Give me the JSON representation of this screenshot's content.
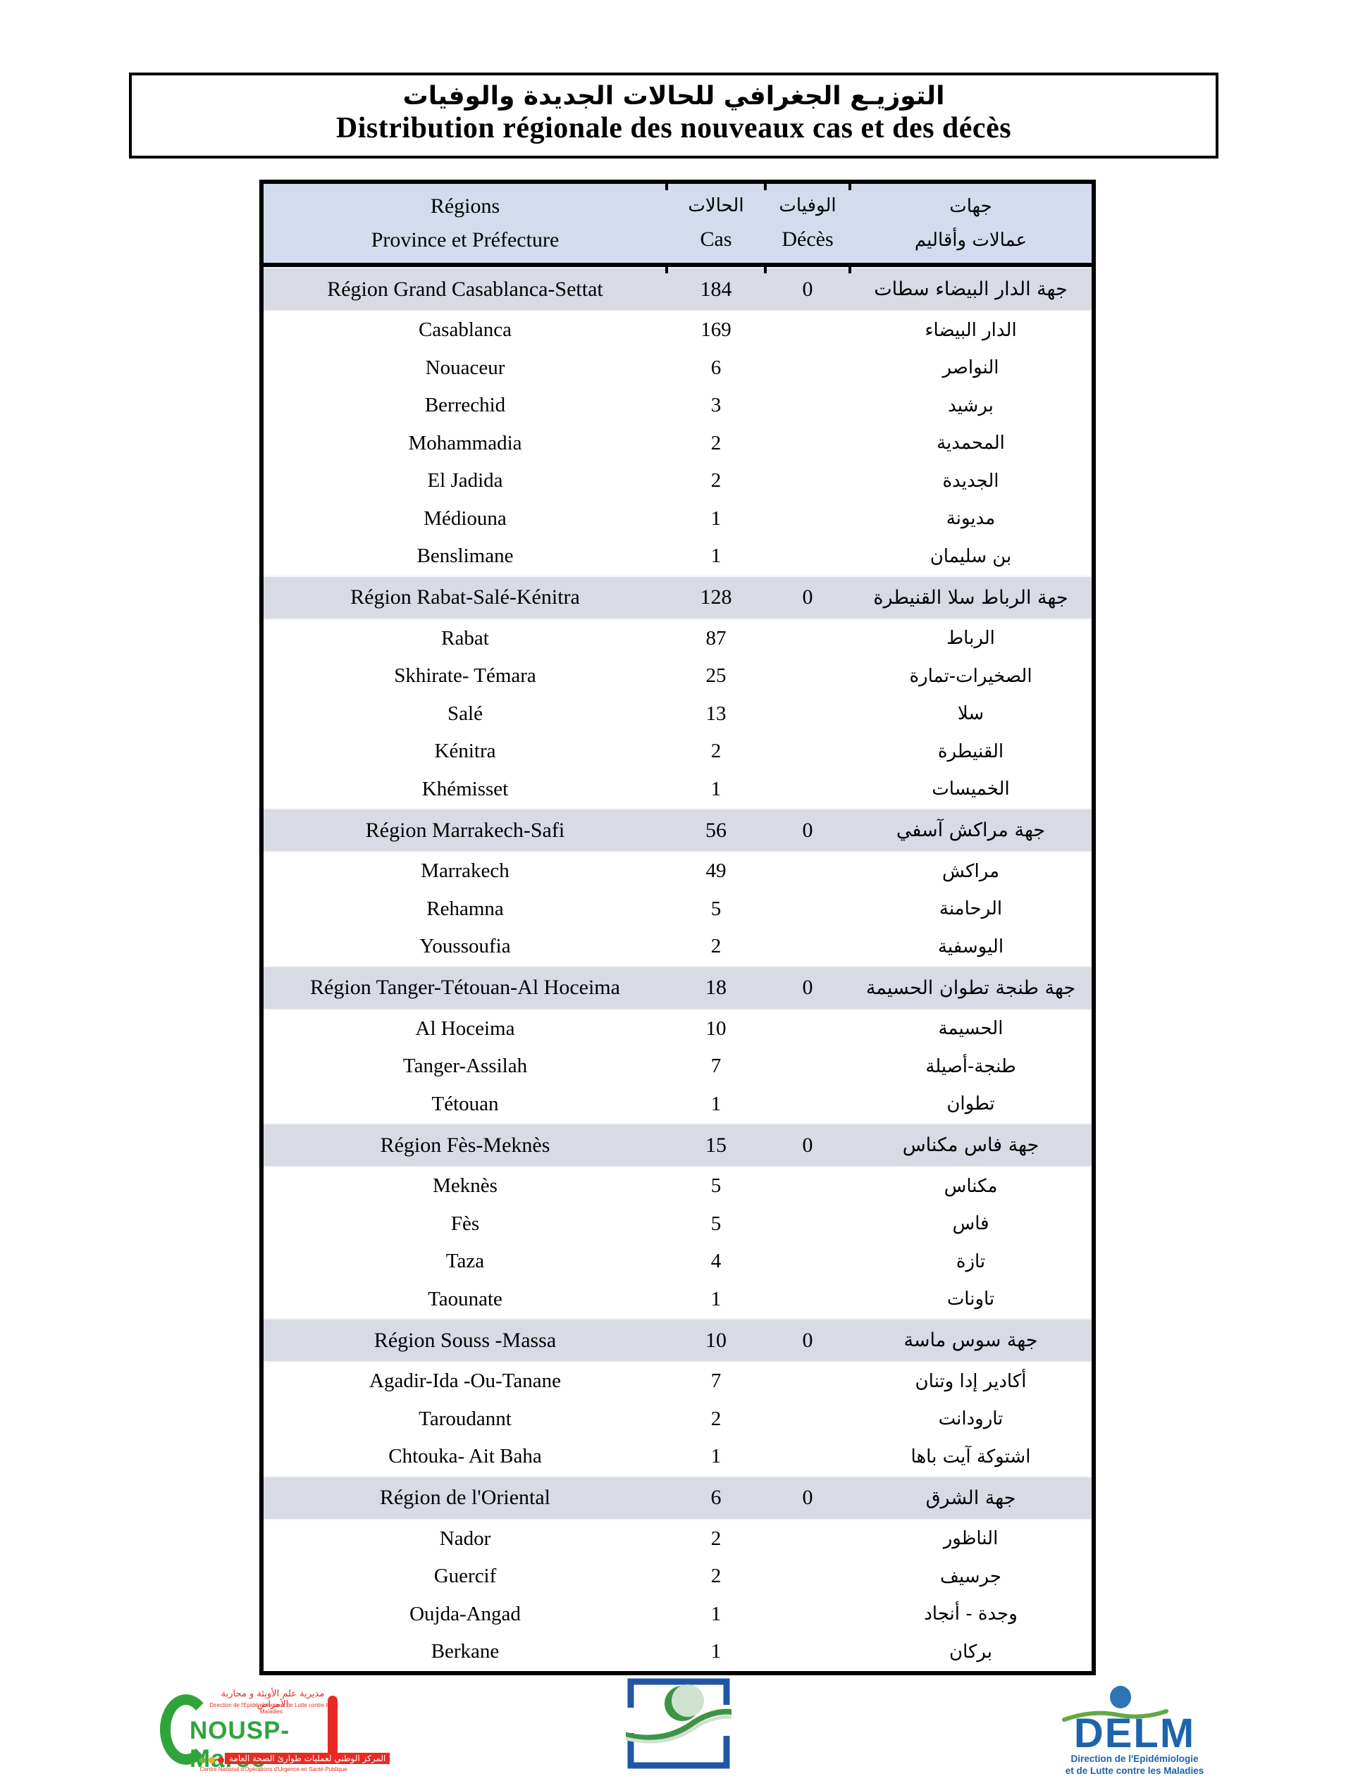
{
  "colors": {
    "header_bg": "#d4dbee",
    "region_bg": "#d8dbe3",
    "nousp_green": "#2ea43b",
    "nousp_red": "#e92a23",
    "ministry_blue": "#2156a5",
    "ministry_green": "#3f9345",
    "ministry_light_green": "#cfe2cf",
    "delm_blue": "#1d64ad",
    "delm_circle_blue": "#2d74b5",
    "delm_green": "#63a844"
  },
  "title_box": {
    "line_ar": "التوزيـع الجغرافي للحالات الجديدة والوفيات",
    "line_fr": "Distribution régionale des nouveaux cas et des décès"
  },
  "table": {
    "header": {
      "regions_label": "Régions",
      "province_label": "Province et Préfecture",
      "cas_label_ar": "الحالات",
      "cas_label_fr": "Cas",
      "deces_label_ar": "الوفيات",
      "deces_label_fr": "Décès",
      "jihat_label_ar": "جهات",
      "provinces_label_ar": "عمالات وأقاليم"
    },
    "rows": [
      {
        "type": "region",
        "fr": "Région Grand Casablanca-Settat",
        "cas": "184",
        "deces": "0",
        "ar": "جهة الدار البيضاء سطات"
      },
      {
        "type": "province",
        "fr": "Casablanca",
        "cas": "169",
        "deces": "",
        "ar": "الدار البيضاء"
      },
      {
        "type": "province",
        "fr": "Nouaceur",
        "cas": "6",
        "deces": "",
        "ar": "النواصر"
      },
      {
        "type": "province",
        "fr": "Berrechid",
        "cas": "3",
        "deces": "",
        "ar": "برشيد"
      },
      {
        "type": "province",
        "fr": "Mohammadia",
        "cas": "2",
        "deces": "",
        "ar": "المحمدية"
      },
      {
        "type": "province",
        "fr": "El Jadida",
        "cas": "2",
        "deces": "",
        "ar": "الجديدة"
      },
      {
        "type": "province",
        "fr": "Médiouna",
        "cas": "1",
        "deces": "",
        "ar": "مديونة"
      },
      {
        "type": "province",
        "fr": "Benslimane",
        "cas": "1",
        "deces": "",
        "ar": "بن سليمان"
      },
      {
        "type": "region",
        "fr": "Région Rabat-Salé-Kénitra",
        "cas": "128",
        "deces": "0",
        "ar": "جهة الرباط سلا القنيطرة"
      },
      {
        "type": "province",
        "fr": "Rabat",
        "cas": "87",
        "deces": "",
        "ar": "الرباط"
      },
      {
        "type": "province",
        "fr": "Skhirate- Témara",
        "cas": "25",
        "deces": "",
        "ar": "الصخيرات-تمارة"
      },
      {
        "type": "province",
        "fr": "Salé",
        "cas": "13",
        "deces": "",
        "ar": "سلا"
      },
      {
        "type": "province",
        "fr": "Kénitra",
        "cas": "2",
        "deces": "",
        "ar": "القنيطرة"
      },
      {
        "type": "province",
        "fr": "Khémisset",
        "cas": "1",
        "deces": "",
        "ar": "الخميسات"
      },
      {
        "type": "region",
        "fr": "Région Marrakech-Safi",
        "cas": "56",
        "deces": "0",
        "ar": "جهة مراكش آسفي"
      },
      {
        "type": "province",
        "fr": "Marrakech",
        "cas": "49",
        "deces": "",
        "ar": "مراكش"
      },
      {
        "type": "province",
        "fr": "Rehamna",
        "cas": "5",
        "deces": "",
        "ar": "الرحامنة"
      },
      {
        "type": "province",
        "fr": "Youssoufia",
        "cas": "2",
        "deces": "",
        "ar": "اليوسفية"
      },
      {
        "type": "region",
        "fr": "Région Tanger-Tétouan-Al Hoceima",
        "cas": "18",
        "deces": "0",
        "ar": "جهة طنجة تطوان الحسيمة"
      },
      {
        "type": "province",
        "fr": "Al Hoceima",
        "cas": "10",
        "deces": "",
        "ar": "الحسيمة"
      },
      {
        "type": "province",
        "fr": "Tanger-Assilah",
        "cas": "7",
        "deces": "",
        "ar": "طنجة-أصيلة"
      },
      {
        "type": "province",
        "fr": "Tétouan",
        "cas": "1",
        "deces": "",
        "ar": "تطوان"
      },
      {
        "type": "region",
        "fr": "Région Fès-Meknès",
        "cas": "15",
        "deces": "0",
        "ar": "جهة فاس مكناس"
      },
      {
        "type": "province",
        "fr": "Meknès",
        "cas": "5",
        "deces": "",
        "ar": "مكناس"
      },
      {
        "type": "province",
        "fr": "Fès",
        "cas": "5",
        "deces": "",
        "ar": "فاس"
      },
      {
        "type": "province",
        "fr": "Taza",
        "cas": "4",
        "deces": "",
        "ar": "تازة"
      },
      {
        "type": "province",
        "fr": "Taounate",
        "cas": "1",
        "deces": "",
        "ar": "تاونات"
      },
      {
        "type": "region",
        "fr": "Région Souss -Massa",
        "cas": "10",
        "deces": "0",
        "ar": "جهة سوس ماسة"
      },
      {
        "type": "province",
        "fr": "Agadir-Ida -Ou-Tanane",
        "cas": "7",
        "deces": "",
        "ar": "أكادير إدا وتنان"
      },
      {
        "type": "province",
        "fr": "Taroudannt",
        "cas": "2",
        "deces": "",
        "ar": "تارودانت"
      },
      {
        "type": "province",
        "fr": "Chtouka- Ait Baha",
        "cas": "1",
        "deces": "",
        "ar": "اشتوكة آيت باها"
      },
      {
        "type": "region",
        "fr": "Région de l'Oriental",
        "cas": "6",
        "deces": "0",
        "ar": "جهة الشرق"
      },
      {
        "type": "province",
        "fr": "Nador",
        "cas": "2",
        "deces": "",
        "ar": "الناظور"
      },
      {
        "type": "province",
        "fr": "Guercif",
        "cas": "2",
        "deces": "",
        "ar": "جرسيف"
      },
      {
        "type": "province",
        "fr": "Oujda-Angad",
        "cas": "1",
        "deces": "",
        "ar": "وجدة - أنجاد"
      },
      {
        "type": "province",
        "fr": "Berkane",
        "cas": "1",
        "deces": "",
        "ar": "بركان"
      }
    ]
  },
  "footer": {
    "nousp": {
      "top_ar": "مديرية علم الأوبئة و محاربة الأمراض",
      "top_fr": "Direction de l'Epidémiologie et de Lutte contre les Maladies",
      "name": "NOUSP-Maroc",
      "bottom_ar": "المركز الوطني لعمليات طوارئ الصحة العامة",
      "bottom_fr": "Centre National d'Opérations d'Urgence en Santé Publique"
    },
    "delm": {
      "name": "DELM",
      "sub_line1": "Direction de l'Epidémiologie",
      "sub_line2": "et de Lutte contre les Maladies"
    }
  }
}
